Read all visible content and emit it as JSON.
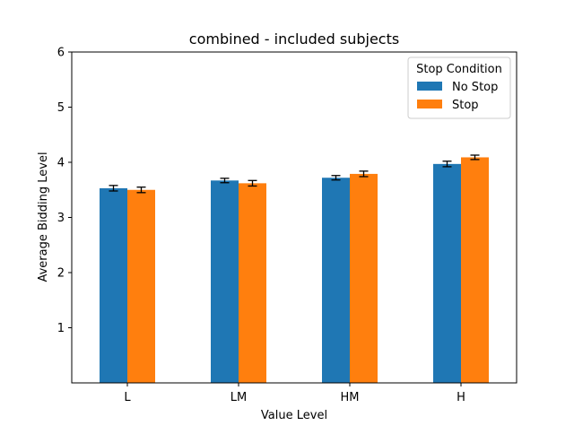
{
  "chart_data": {
    "type": "bar",
    "title": "combined - included subjects",
    "xlabel": "Value Level",
    "ylabel": "Average Bidding Level",
    "categories": [
      "L",
      "LM",
      "HM",
      "H"
    ],
    "ylim": [
      0,
      6
    ],
    "yticks": [
      "1",
      "2",
      "3",
      "4",
      "5",
      "6"
    ],
    "grid": false,
    "legend": {
      "title": "Stop Condition",
      "placement": "top-right"
    },
    "series": [
      {
        "name": "No Stop",
        "color": "#1f77b4",
        "values": [
          3.53,
          3.67,
          3.72,
          3.97
        ],
        "errors": [
          0.05,
          0.04,
          0.04,
          0.05
        ]
      },
      {
        "name": "Stop",
        "color": "#ff7f0e",
        "values": [
          3.5,
          3.62,
          3.79,
          4.09
        ],
        "errors": [
          0.05,
          0.05,
          0.05,
          0.04
        ]
      }
    ]
  }
}
